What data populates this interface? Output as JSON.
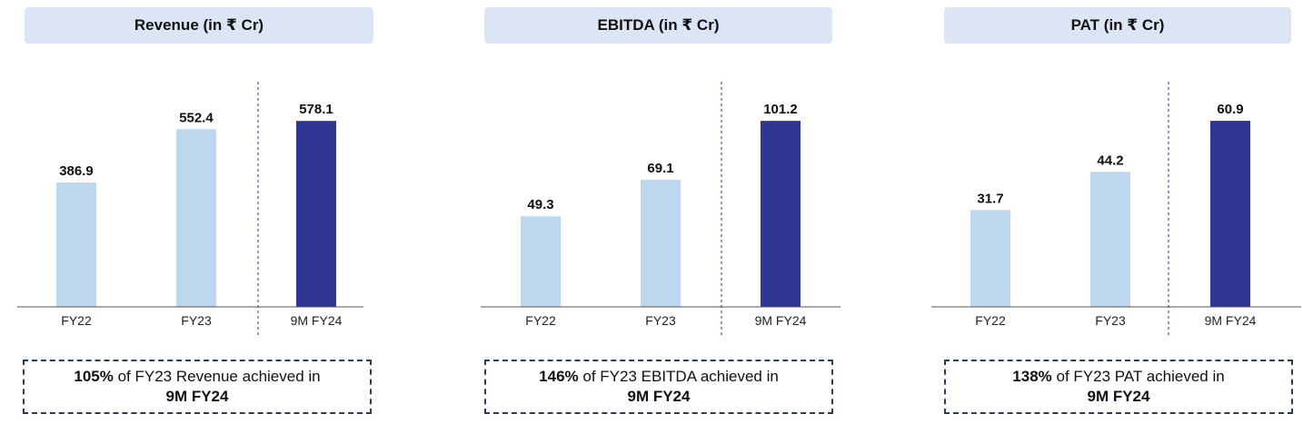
{
  "chart_data": [
    {
      "type": "bar",
      "title": "Revenue (in ₹ Cr)",
      "categories": [
        "FY22",
        "FY23",
        "9M FY24"
      ],
      "values": [
        386.9,
        552.4,
        578.1
      ],
      "value_labels": [
        "386.9",
        "552.4",
        "578.1"
      ],
      "ylim": [
        0,
        700
      ],
      "colors": [
        "#bdd7ee",
        "#bdd7ee",
        "#2e3592"
      ],
      "note": {
        "highlight": "105%",
        "text": " of FY23 Revenue achieved in",
        "line2": "9M FY24"
      }
    },
    {
      "type": "bar",
      "title": "EBITDA (in ₹ Cr)",
      "categories": [
        "FY22",
        "FY23",
        "9M FY24"
      ],
      "values": [
        49.3,
        69.1,
        101.2
      ],
      "value_labels": [
        "49.3",
        "69.1",
        "101.2"
      ],
      "ylim": [
        0,
        122.5
      ],
      "colors": [
        "#bdd7ee",
        "#bdd7ee",
        "#2e3592"
      ],
      "note": {
        "highlight": "146%",
        "text": " of FY23 EBITDA achieved in",
        "line2": "9M FY24"
      }
    },
    {
      "type": "bar",
      "title": "PAT (in ₹ Cr)",
      "categories": [
        "FY22",
        "FY23",
        "9M FY24"
      ],
      "values": [
        31.7,
        44.2,
        60.9
      ],
      "value_labels": [
        "31.7",
        "44.2",
        "60.9"
      ],
      "ylim": [
        0,
        73.7
      ],
      "colors": [
        "#bdd7ee",
        "#bdd7ee",
        "#2e3592"
      ],
      "note": {
        "highlight": "138%",
        "text": " of FY23 PAT achieved in",
        "line2": "9M FY24"
      }
    }
  ]
}
